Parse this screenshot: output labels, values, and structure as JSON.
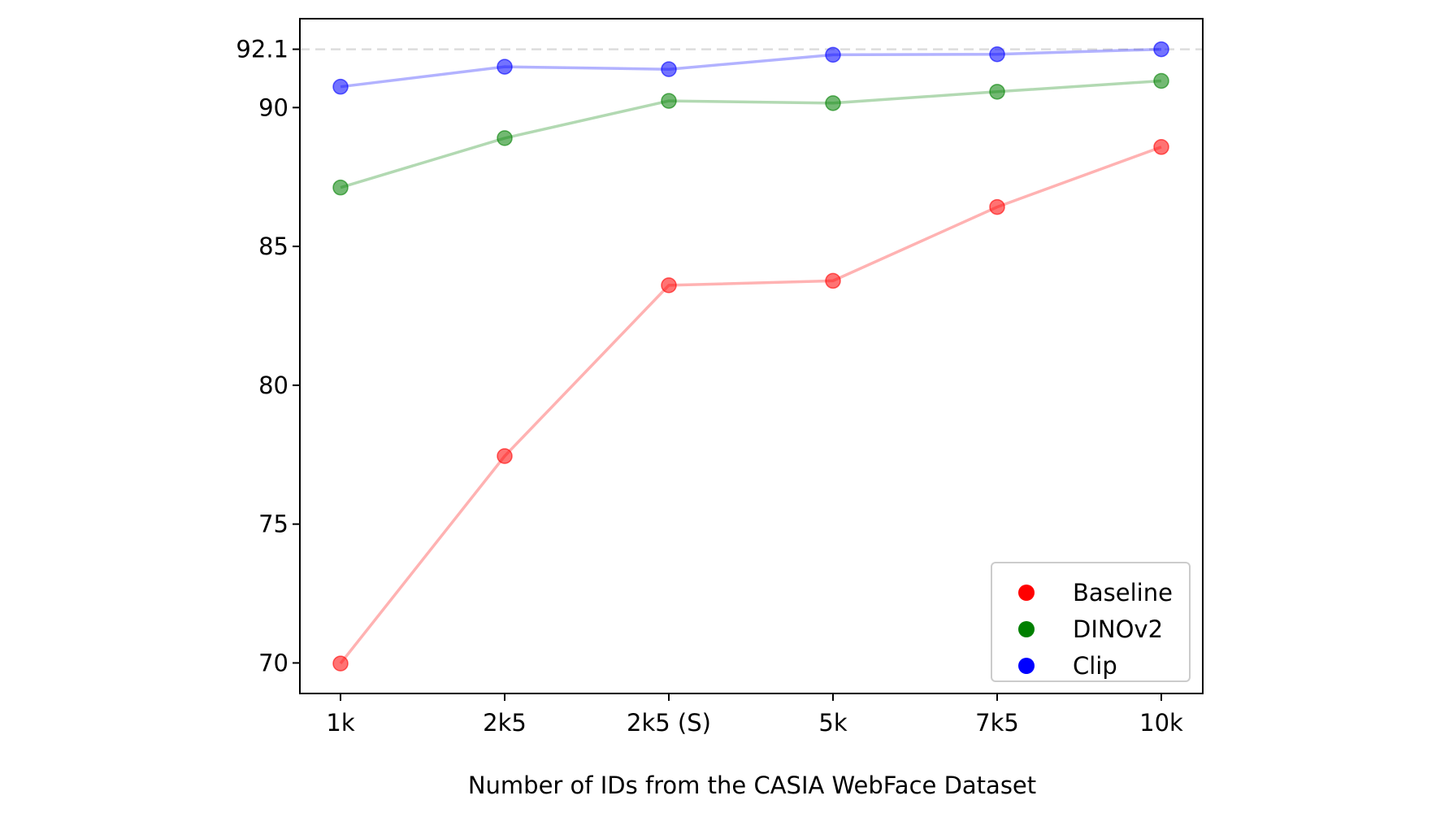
{
  "chart_data": {
    "type": "line",
    "title": "",
    "xlabel": "Number of IDs from the CASIA WebFace Dataset",
    "ylabel": "",
    "categories": [
      "1k",
      "2k5",
      "2k5 (S)",
      "5k",
      "7k5",
      "10k"
    ],
    "ylim": [
      68.9,
      93.2
    ],
    "yticks": [
      70,
      75,
      80,
      85,
      90,
      92.1
    ],
    "reference_line": {
      "y": 92.1,
      "style": "dashed",
      "color": "#dddddd"
    },
    "grid": false,
    "legend": {
      "position": "bottom-right"
    },
    "series": [
      {
        "name": "Baseline",
        "color": "#ff0000",
        "values": [
          69.98,
          77.45,
          83.6,
          83.76,
          86.42,
          88.58
        ]
      },
      {
        "name": "DINOv2",
        "color": "#008000",
        "values": [
          87.12,
          88.9,
          90.24,
          90.16,
          90.57,
          90.96
        ]
      },
      {
        "name": "Clip",
        "color": "#0000ff",
        "values": [
          90.75,
          91.47,
          91.38,
          91.9,
          91.92,
          92.1
        ]
      }
    ]
  }
}
